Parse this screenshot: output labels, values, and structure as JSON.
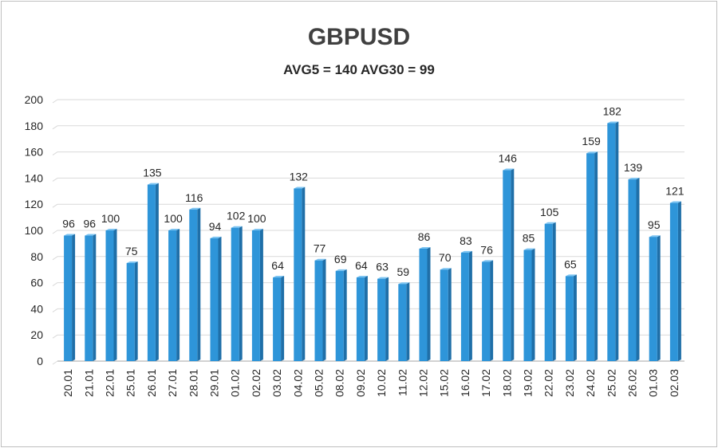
{
  "chart_data": {
    "type": "bar",
    "title": "GBPUSD",
    "subtitle": "AVG5 = 140 AVG30 = 99",
    "xlabel": "",
    "ylabel": "",
    "ylim": [
      0,
      200
    ],
    "yticks": [
      0,
      20,
      40,
      60,
      80,
      100,
      120,
      140,
      160,
      180,
      200
    ],
    "grid": true,
    "bar_color": "#2e95d9",
    "bar_dark": "#1f6fa8",
    "bar_light": "#7cc4f2",
    "categories": [
      "20.01",
      "21.01",
      "22.01",
      "25.01",
      "26.01",
      "27.01",
      "28.01",
      "29.01",
      "01.02",
      "02.02",
      "03.02",
      "04.02",
      "05.02",
      "08.02",
      "09.02",
      "10.02",
      "11.02",
      "12.02",
      "15.02",
      "16.02",
      "17.02",
      "18.02",
      "19.02",
      "22.02",
      "23.02",
      "24.02",
      "25.02",
      "26.02",
      "01.03",
      "02.03"
    ],
    "values": [
      96,
      96,
      100,
      75,
      135,
      100,
      116,
      94,
      102,
      100,
      64,
      132,
      77,
      69,
      64,
      63,
      59,
      86,
      70,
      83,
      76,
      146,
      85,
      105,
      65,
      159,
      182,
      139,
      95,
      121
    ]
  }
}
